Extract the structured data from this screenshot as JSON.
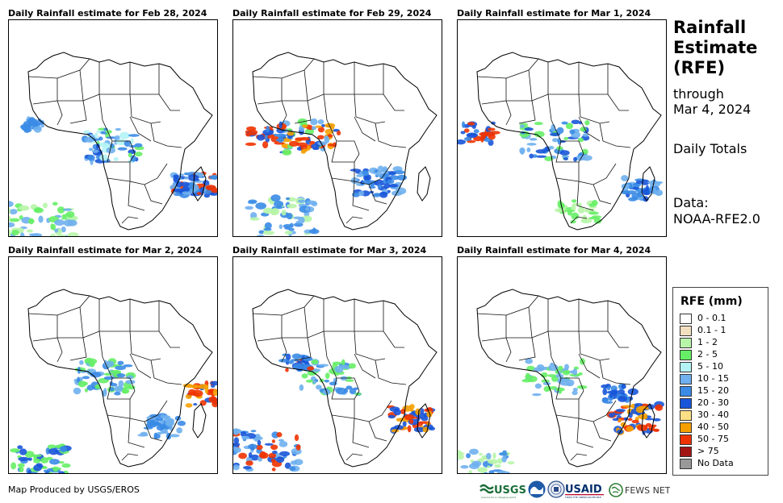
{
  "panels": [
    {
      "title": "Daily Rainfall estimate for Feb 28, 2024"
    },
    {
      "title": "Daily Rainfall estimate for Feb 29, 2024"
    },
    {
      "title": "Daily Rainfall estimate for Mar 1, 2024"
    },
    {
      "title": "Daily Rainfall estimate for Mar 2, 2024"
    },
    {
      "title": "Daily Rainfall estimate for Mar 3, 2024"
    },
    {
      "title": "Daily Rainfall estimate for Mar 4, 2024"
    }
  ],
  "side": {
    "title_line1": "Rainfall",
    "title_line2": "Estimate",
    "title_line3": "(RFE)",
    "through_label": "through",
    "through_date": "Mar 4, 2024",
    "frequency": "Daily Totals",
    "source_label": "Data:",
    "source_value": "NOAA-RFE2.0"
  },
  "legend": {
    "title": "RFE (mm)",
    "items": [
      {
        "label": "0 - 0.1",
        "color": "#ffffff"
      },
      {
        "label": "0.1 - 1",
        "color": "#f2dfc0"
      },
      {
        "label": "1 - 2",
        "color": "#b7f5a8"
      },
      {
        "label": "2 - 5",
        "color": "#66ee66"
      },
      {
        "label": "5 - 10",
        "color": "#b3f3f5"
      },
      {
        "label": "10 - 15",
        "color": "#6fb0ee"
      },
      {
        "label": "15 - 20",
        "color": "#3a8be6"
      },
      {
        "label": "20 - 30",
        "color": "#1855d8"
      },
      {
        "label": "30 - 40",
        "color": "#fddf85"
      },
      {
        "label": "40 - 50",
        "color": "#f5a000"
      },
      {
        "label": "50 - 75",
        "color": "#ee3300"
      },
      {
        "label": "> 75",
        "color": "#a31515"
      },
      {
        "label": "No Data",
        "color": "#999999"
      }
    ]
  },
  "credit": "Map Produced by USGS/EROS",
  "logos": {
    "usgs": "USGS",
    "usaid": "USAID",
    "fewsnet": "FEWS NET"
  }
}
